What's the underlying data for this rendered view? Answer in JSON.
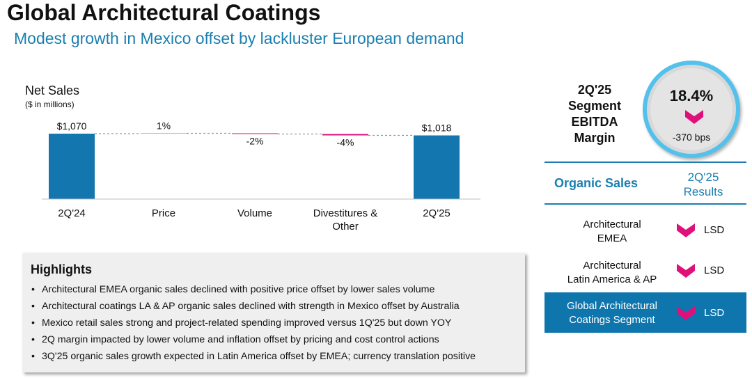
{
  "page": {
    "title": "Global Architectural Coatings",
    "subtitle": "Modest growth in Mexico offset by lackluster European demand"
  },
  "chart_data": {
    "type": "bar",
    "subtype": "waterfall",
    "title": "Net Sales",
    "units": "($ in millions)",
    "categories": [
      "2Q'24",
      "Price",
      "Volume",
      "Divestitures & Other",
      "2Q'25"
    ],
    "category_lines": [
      [
        "2Q'24"
      ],
      [
        "Price"
      ],
      [
        "Volume"
      ],
      [
        "Divestitures &",
        "Other"
      ],
      [
        "2Q'25"
      ]
    ],
    "bars": [
      {
        "category": "2Q'24",
        "kind": "total",
        "value": 1070,
        "label": "$1,070",
        "color": "#1476ae"
      },
      {
        "category": "Price",
        "kind": "delta",
        "value": 11,
        "label": "1%",
        "color": "#2bb24c"
      },
      {
        "category": "Volume",
        "kind": "delta",
        "value": -21,
        "label": "-2%",
        "color": "#e0107a"
      },
      {
        "category": "Divestitures & Other",
        "kind": "delta",
        "value": -42,
        "label": "-4%",
        "color": "#e0107a"
      },
      {
        "category": "2Q'25",
        "kind": "total",
        "value": 1018,
        "label": "$1,018",
        "color": "#1476ae"
      }
    ],
    "connectors": "dashed",
    "grid": false
  },
  "highlights": {
    "heading": "Highlights",
    "items": [
      "Architectural EMEA organic sales declined with positive price offset by lower sales volume",
      "Architectural coatings LA & AP organic sales declined with strength in Mexico offset by Australia",
      "Mexico retail sales strong and project-related spending improved versus 1Q'25 but down YOY",
      "2Q margin impacted by lower volume and inflation offset by pricing and cost control actions",
      "3Q'25 organic sales growth expected in Latin America offset by EMEA; currency translation positive"
    ]
  },
  "ebitda": {
    "label_lines": [
      "2Q'25",
      "Segment",
      "EBITDA",
      "Margin"
    ],
    "value": "18.4%",
    "change": "-370 bps",
    "direction": "down",
    "arrow_color": "#e0107a",
    "ring_color": "#52c1ec"
  },
  "organic_sales": {
    "title": "Organic Sales",
    "column_header_lines": [
      "2Q'25",
      "Results"
    ],
    "rows": [
      {
        "name_lines": [
          "Architectural",
          "EMEA"
        ],
        "direction": "down",
        "result": "LSD",
        "highlight": false
      },
      {
        "name_lines": [
          "Architectural",
          "Latin America & AP"
        ],
        "direction": "down",
        "result": "LSD",
        "highlight": false
      },
      {
        "name_lines": [
          "Global Architectural",
          "Coatings Segment"
        ],
        "direction": "down",
        "result": "LSD",
        "highlight": true
      }
    ]
  },
  "colors": {
    "accent_blue": "#1a7fb0",
    "bar_blue": "#1476ae",
    "negative_magenta": "#e0107a",
    "positive_green": "#2bb24c",
    "highlight_row": "#0f76ad"
  }
}
